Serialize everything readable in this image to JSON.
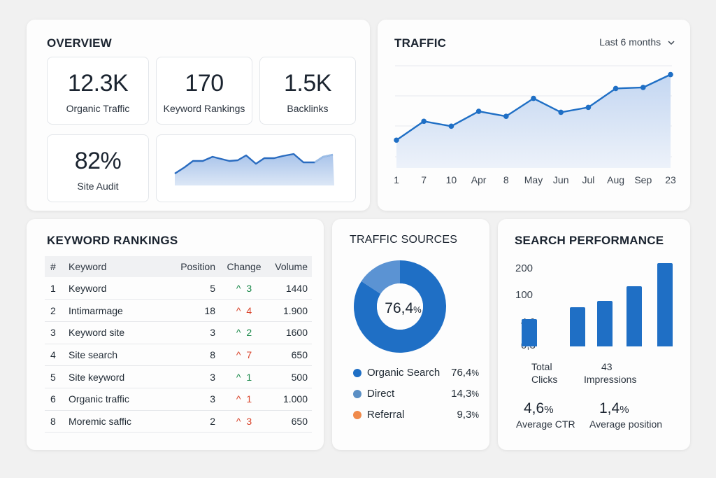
{
  "overview": {
    "title": "OVERVIEW",
    "stats": [
      {
        "value": "12.3K",
        "label": "Organic Traffic"
      },
      {
        "value": "170",
        "label": "Keyword Rankings"
      },
      {
        "value": "1.5K",
        "label": "Backlinks"
      },
      {
        "value": "82%",
        "label": "Site Audit"
      }
    ]
  },
  "traffic": {
    "title": "TRAFFIC",
    "range_label": "Last 6 months",
    "chart_data": {
      "type": "line",
      "x": [
        "1",
        "7",
        "10",
        "Apr",
        "8",
        "May",
        "Jun",
        "Jul",
        "Aug",
        "Sep",
        "23"
      ],
      "values": [
        28,
        47,
        42,
        57,
        52,
        70,
        56,
        61,
        80,
        81,
        94
      ],
      "ylim": [
        0,
        100
      ],
      "grid": true
    }
  },
  "keyword_rankings": {
    "title": "KEYWORD RANKINGS",
    "columns": [
      "#",
      "Keyword",
      "Position",
      "Change",
      "Volume"
    ],
    "rows": [
      {
        "n": "1",
        "keyword": "Keyword",
        "position": "5",
        "arrow": "^",
        "change": "3",
        "dir": "up",
        "volume": "1440"
      },
      {
        "n": "2",
        "keyword": "Intimarmage",
        "position": "18",
        "arrow": "^",
        "change": "4",
        "dir": "down",
        "volume": "1.900"
      },
      {
        "n": "3",
        "keyword": "Keyword site",
        "position": "3",
        "arrow": "^",
        "change": "2",
        "dir": "up",
        "volume": "1600"
      },
      {
        "n": "4",
        "keyword": "Site search",
        "position": "8",
        "arrow": "^",
        "change": "7",
        "dir": "down",
        "volume": "650"
      },
      {
        "n": "5",
        "keyword": "Site keyword",
        "position": "3",
        "arrow": "^",
        "change": "1",
        "dir": "up",
        "volume": "500"
      },
      {
        "n": "6",
        "keyword": "Organic traffic",
        "position": "3",
        "arrow": "^",
        "change": "1",
        "dir": "down",
        "volume": "1.000"
      },
      {
        "n": "8",
        "keyword": "Moremic saffic",
        "position": "2",
        "arrow": "^",
        "change": "3",
        "dir": "down",
        "volume": "650"
      }
    ],
    "colors": {
      "up": "#1d8a4c",
      "down": "#d9442b"
    }
  },
  "traffic_sources": {
    "title": "TRAFFIC SOURCES",
    "center_value": "76,4",
    "center_unit": "%",
    "chart_data": {
      "type": "pie",
      "slices": [
        {
          "name": "Organic Search",
          "value": 76.4,
          "label": "76,4",
          "color": "#1f6fc5"
        },
        {
          "name": "Direct",
          "value": 14.3,
          "label": "14,3",
          "color": "#5b93d3"
        },
        {
          "name": "Referral",
          "value": 9.3,
          "label": "9,3",
          "color": "#f08a4b"
        }
      ]
    },
    "legend": [
      {
        "name": "Organic Search",
        "value": "76,4",
        "unit": "%",
        "color": "#1f6fc5"
      },
      {
        "name": "Direct",
        "value": "14,3",
        "unit": "%",
        "color": "#5b8fc4"
      },
      {
        "name": "Referral",
        "value": "9,3",
        "unit": "%",
        "color": "#f08a4b"
      }
    ]
  },
  "search_performance": {
    "title": "SEARCH PERFORMANCE",
    "axis_ticks": [
      "200",
      "100",
      "4,0",
      "0,3"
    ],
    "chart_data": {
      "type": "bar",
      "values": [
        38,
        55,
        64,
        85,
        117
      ],
      "ylim": [
        0,
        120
      ]
    },
    "total_clicks_label_1": "Total",
    "total_clicks_label_2": "Clicks",
    "impressions_value": "43",
    "impressions_label": "Impressions",
    "ctr_value": "4,6",
    "ctr_unit": "%",
    "ctr_label": "Average CTR",
    "position_value": "1,4",
    "position_unit": "%",
    "position_label": "Average position"
  }
}
